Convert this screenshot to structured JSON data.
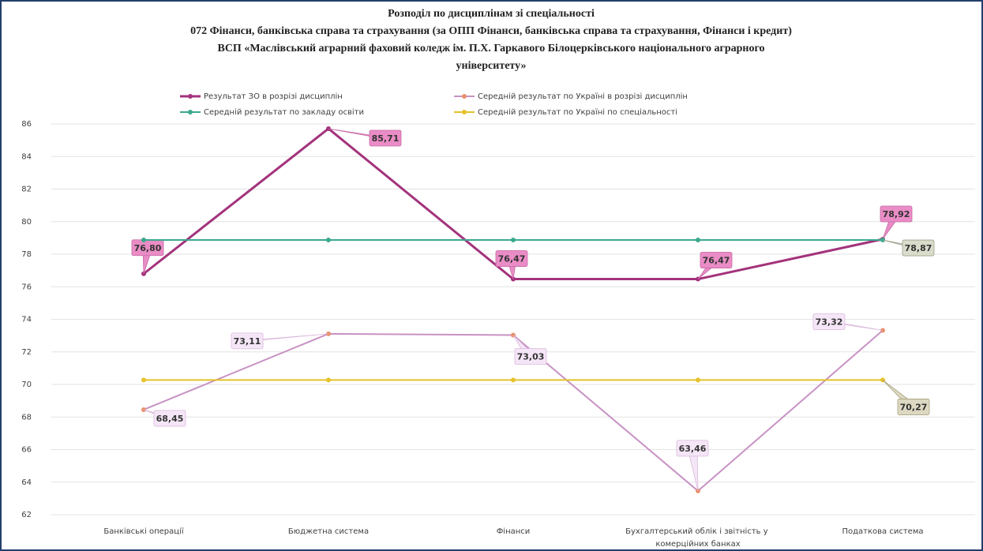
{
  "chart_data": {
    "type": "line",
    "title": [
      "Розподіл по дисциплінам зі спеціальності",
      "072 Фінанси, банківська справа та страхування (за ОПП Фінанси, банківська справа та страхування, Фінанси і кредит)",
      "ВСП «Маслівський аграрний фаховий коледж ім. П.Х. Гаркавого  Білоцерківського національного аграрного",
      "університету»"
    ],
    "categories": [
      "Банківські операції",
      "Бюджетна система",
      "Фінанси",
      "Бухгалтерський облік і звітність у комерційних банках",
      "Податкова система"
    ],
    "series": [
      {
        "name": "Результат ЗО в розрізі дисциплін",
        "color": "#a3337c",
        "marker_color": "#a3337c",
        "values": [
          76.8,
          85.71,
          76.47,
          76.47,
          78.92
        ],
        "value_labels": [
          "76,80",
          "85,71",
          "76,47",
          "76,47",
          "78,92"
        ]
      },
      {
        "name": "Середній результат по Україні в розрізі дисциплін",
        "color": "#c892c4",
        "marker_color": "#e8906c",
        "values": [
          68.45,
          73.11,
          73.03,
          63.46,
          73.32
        ],
        "value_labels": [
          "68,45",
          "73,11",
          "73,03",
          "63,46",
          "73,32"
        ]
      },
      {
        "name": "Середній результат по закладу освіти",
        "color": "#3aa98e",
        "marker_color": "#3aa98e",
        "values": [
          78.87,
          78.87,
          78.87,
          78.87,
          78.87
        ],
        "value_labels": [
          null,
          null,
          null,
          null,
          "78,87"
        ]
      },
      {
        "name": "Середній результат по Україні по спеціальності",
        "color": "#e5c22a",
        "marker_color": "#e5c22a",
        "values": [
          70.27,
          70.27,
          70.27,
          70.27,
          70.27
        ],
        "value_labels": [
          null,
          null,
          null,
          null,
          "70,27"
        ]
      }
    ],
    "ylim": [
      62,
      86
    ],
    "yticks": [
      62,
      64,
      66,
      68,
      70,
      72,
      74,
      76,
      78,
      80,
      82,
      84,
      86
    ],
    "grid": true
  }
}
